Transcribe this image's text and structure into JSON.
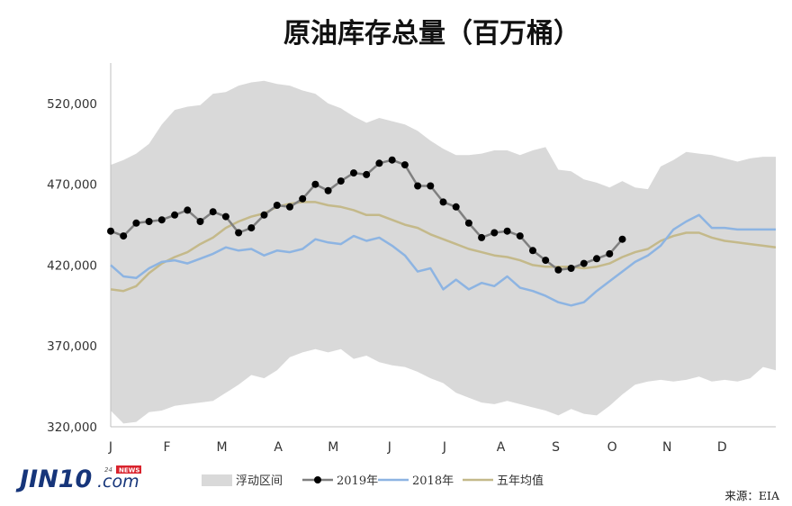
{
  "chart_data": {
    "type": "line",
    "title": "原油库存总量（百万桶）",
    "xlabel": "",
    "ylabel": "",
    "ylim": [
      320000,
      545000
    ],
    "yticks": [
      320000,
      370000,
      420000,
      470000,
      520000
    ],
    "ytick_labels": [
      "320,000",
      "370,000",
      "420,000",
      "470,000",
      "520,000"
    ],
    "x_unit": "week",
    "xlim": [
      1,
      53
    ],
    "month_labels": [
      "J",
      "F",
      "M",
      "A",
      "M",
      "J",
      "J",
      "A",
      "S",
      "O",
      "N",
      "D"
    ],
    "month_weeks": [
      1,
      5.4,
      9.7,
      14.1,
      18.4,
      22.8,
      27.1,
      31.5,
      35.8,
      40.2,
      44.5,
      48.8
    ],
    "grid": false,
    "legend_position": "bottom",
    "band": {
      "name": "浮动区间",
      "color": "#d9d9d9",
      "upper": [
        482000,
        485000,
        489000,
        495000,
        507000,
        516000,
        518000,
        519000,
        526000,
        527000,
        531000,
        533000,
        534000,
        532000,
        531000,
        528000,
        526000,
        520000,
        517000,
        512000,
        508000,
        511000,
        509000,
        507000,
        503000,
        497000,
        492000,
        488000,
        488000,
        489000,
        491000,
        491000,
        488000,
        491000,
        493000,
        479000,
        478000,
        473000,
        471000,
        468000,
        472000,
        468000,
        467000,
        481000,
        485000,
        490000,
        489000,
        488000,
        486000,
        484000,
        486000,
        487000,
        487000
      ],
      "lower": [
        330000,
        322000,
        323000,
        329000,
        330000,
        333000,
        334000,
        335000,
        336000,
        341000,
        346000,
        352000,
        350000,
        355000,
        363000,
        366000,
        368000,
        366000,
        368000,
        362000,
        364000,
        360000,
        358000,
        357000,
        354000,
        350000,
        347000,
        341000,
        338000,
        335000,
        334000,
        336000,
        334000,
        332000,
        330000,
        327000,
        331000,
        328000,
        327000,
        333000,
        340000,
        346000,
        348000,
        349000,
        348000,
        349000,
        351000,
        348000,
        349000,
        348000,
        350000,
        357000,
        355000
      ]
    },
    "series": [
      {
        "name": "2019年",
        "color": "#7f7f7f",
        "marker": "circle",
        "values": [
          441000,
          438000,
          446000,
          447000,
          448000,
          451000,
          454000,
          447000,
          453000,
          450000,
          440000,
          443000,
          451000,
          457000,
          456000,
          461000,
          470000,
          466000,
          472000,
          477000,
          476000,
          483000,
          485000,
          482000,
          469000,
          469000,
          459000,
          456000,
          446000,
          437000,
          440000,
          441000,
          438000,
          429000,
          423000,
          417000,
          418000,
          421000,
          424000,
          427000,
          436000,
          null,
          null,
          null,
          null,
          null,
          null,
          null,
          null,
          null,
          null,
          null,
          null
        ]
      },
      {
        "name": "2018年",
        "color": "#8db4e2",
        "marker": "none",
        "values": [
          420000,
          413000,
          412000,
          418000,
          422000,
          423000,
          421000,
          424000,
          427000,
          431000,
          429000,
          430000,
          426000,
          429000,
          428000,
          430000,
          436000,
          434000,
          433000,
          438000,
          435000,
          437000,
          432000,
          426000,
          416000,
          418000,
          405000,
          411000,
          405000,
          409000,
          407000,
          413000,
          406000,
          404000,
          401000,
          397000,
          395000,
          397000,
          404000,
          410000,
          416000,
          422000,
          426000,
          432000,
          442000,
          447000,
          451000,
          443000,
          443000,
          442000,
          442000,
          442000,
          442000
        ]
      },
      {
        "name": "五年均值",
        "color": "#c4b98a",
        "marker": "none",
        "values": [
          405000,
          404000,
          407000,
          415000,
          421000,
          425000,
          428000,
          433000,
          437000,
          443000,
          447000,
          450000,
          452000,
          456000,
          458000,
          459000,
          459000,
          457000,
          456000,
          454000,
          451000,
          451000,
          448000,
          445000,
          443000,
          439000,
          436000,
          433000,
          430000,
          428000,
          426000,
          425000,
          423000,
          420000,
          419000,
          419000,
          419000,
          418000,
          419000,
          421000,
          425000,
          428000,
          430000,
          435000,
          438000,
          440000,
          440000,
          437000,
          435000,
          434000,
          433000,
          432000,
          431000
        ]
      }
    ]
  },
  "legend": {
    "band_label": "浮动区间",
    "series_2019_label": "2019年",
    "series_2018_label": "2018年",
    "series_avg_label": "五年均值"
  },
  "source": "来源：EIA",
  "logo": {
    "main": "JIN10",
    "suffix": ".com",
    "tag_number": "24",
    "tag_news": "NEWS"
  }
}
